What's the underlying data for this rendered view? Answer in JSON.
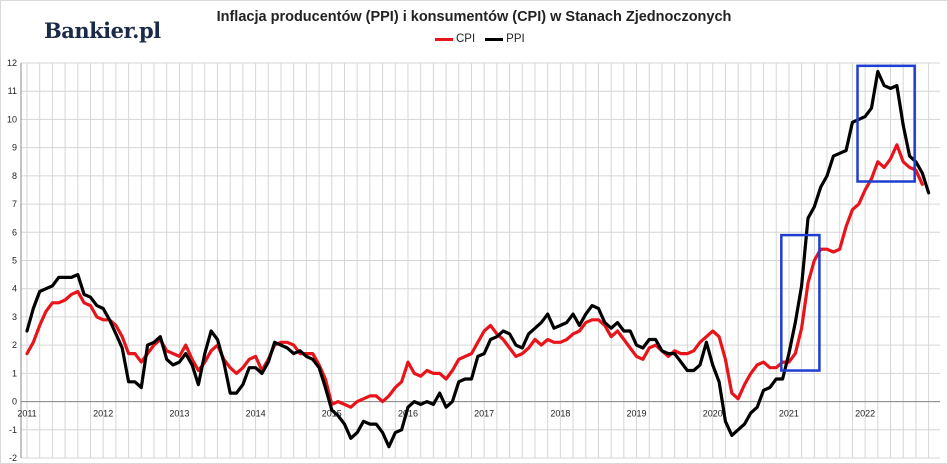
{
  "brand": "Bankier.pl",
  "chart_data": {
    "type": "line",
    "title": "Inflacja producentów (PPI) i konsumentów (CPI) w Stanach Zjednoczonych",
    "legend_position": "top-center",
    "x_tick_labels": [
      "2011",
      "2012",
      "2013",
      "2014",
      "2015",
      "2016",
      "2017",
      "2018",
      "2019",
      "2020",
      "2021",
      "2022"
    ],
    "x_range": [
      2011.0,
      2022.917
    ],
    "ylim": [
      -2,
      12
    ],
    "y_ticks": [
      -2,
      -1,
      0,
      1,
      2,
      3,
      4,
      5,
      6,
      7,
      8,
      9,
      10,
      11,
      12
    ],
    "grid": true,
    "series": [
      {
        "name": "CPI",
        "color": "#e8141a",
        "start": 2011.0,
        "step_months": 1,
        "values": [
          1.7,
          2.1,
          2.7,
          3.2,
          3.5,
          3.5,
          3.6,
          3.8,
          3.9,
          3.5,
          3.4,
          3.0,
          2.9,
          2.9,
          2.7,
          2.3,
          1.7,
          1.7,
          1.4,
          1.7,
          2.0,
          2.2,
          1.8,
          1.7,
          1.6,
          2.0,
          1.5,
          1.1,
          1.4,
          1.8,
          2.0,
          1.5,
          1.2,
          1.0,
          1.2,
          1.5,
          1.6,
          1.1,
          1.5,
          2.0,
          2.1,
          2.1,
          2.0,
          1.7,
          1.7,
          1.7,
          1.3,
          0.8,
          -0.1,
          0.0,
          -0.1,
          -0.2,
          0.0,
          0.1,
          0.2,
          0.2,
          0.0,
          0.2,
          0.5,
          0.7,
          1.4,
          1.0,
          0.9,
          1.1,
          1.0,
          1.0,
          0.8,
          1.1,
          1.5,
          1.6,
          1.7,
          2.1,
          2.5,
          2.7,
          2.4,
          2.2,
          1.9,
          1.6,
          1.7,
          1.9,
          2.2,
          2.0,
          2.2,
          2.1,
          2.1,
          2.2,
          2.4,
          2.5,
          2.8,
          2.9,
          2.9,
          2.7,
          2.3,
          2.5,
          2.2,
          1.9,
          1.6,
          1.5,
          1.9,
          2.0,
          1.8,
          1.6,
          1.8,
          1.7,
          1.7,
          1.8,
          2.1,
          2.3,
          2.5,
          2.3,
          1.5,
          0.3,
          0.1,
          0.6,
          1.0,
          1.3,
          1.4,
          1.2,
          1.2,
          1.4,
          1.4,
          1.7,
          2.6,
          4.2,
          5.0,
          5.4,
          5.4,
          5.3,
          5.4,
          6.2,
          6.8,
          7.0,
          7.5,
          7.9,
          8.5,
          8.3,
          8.6,
          9.1,
          8.5,
          8.3,
          8.2,
          7.7
        ]
      },
      {
        "name": "PPI",
        "color": "#000000",
        "start": 2011.0,
        "step_months": 1,
        "values": [
          2.5,
          3.3,
          3.9,
          4.0,
          4.1,
          4.4,
          4.4,
          4.4,
          4.5,
          3.8,
          3.7,
          3.4,
          3.3,
          2.9,
          2.4,
          1.9,
          0.7,
          0.7,
          0.5,
          2.0,
          2.1,
          2.3,
          1.5,
          1.3,
          1.4,
          1.7,
          1.3,
          0.6,
          1.7,
          2.5,
          2.2,
          1.4,
          0.3,
          0.3,
          0.6,
          1.2,
          1.2,
          1.0,
          1.4,
          2.1,
          2.0,
          1.9,
          1.7,
          1.8,
          1.6,
          1.5,
          1.2,
          0.5,
          -0.3,
          -0.5,
          -0.8,
          -1.3,
          -1.1,
          -0.7,
          -0.8,
          -0.8,
          -1.1,
          -1.6,
          -1.1,
          -1.0,
          -0.2,
          0.0,
          -0.1,
          0.0,
          -0.1,
          0.3,
          -0.2,
          0.0,
          0.7,
          0.8,
          0.8,
          1.6,
          1.7,
          2.2,
          2.3,
          2.5,
          2.4,
          2.0,
          1.9,
          2.4,
          2.6,
          2.8,
          3.1,
          2.6,
          2.7,
          2.8,
          3.1,
          2.7,
          3.1,
          3.4,
          3.3,
          2.8,
          2.6,
          2.8,
          2.5,
          2.5,
          2.0,
          1.9,
          2.2,
          2.2,
          1.8,
          1.7,
          1.7,
          1.4,
          1.1,
          1.1,
          1.3,
          2.1,
          1.3,
          0.7,
          -0.7,
          -1.2,
          -1.0,
          -0.8,
          -0.4,
          -0.2,
          0.4,
          0.5,
          0.8,
          0.8,
          1.7,
          2.8,
          4.1,
          6.5,
          6.9,
          7.6,
          8.0,
          8.7,
          8.8,
          8.9,
          9.9,
          10.0,
          10.1,
          10.4,
          11.7,
          11.2,
          11.1,
          11.2,
          9.8,
          8.7,
          8.5,
          8.1,
          7.4
        ]
      }
    ],
    "highlight_boxes": [
      {
        "x_range": [
          2020.9,
          2021.4
        ],
        "y_range": [
          1.1,
          5.9
        ],
        "color": "#1f3ed1"
      },
      {
        "x_range": [
          2021.9,
          2022.65
        ],
        "y_range": [
          7.8,
          11.9
        ],
        "color": "#1f3ed1"
      }
    ]
  }
}
